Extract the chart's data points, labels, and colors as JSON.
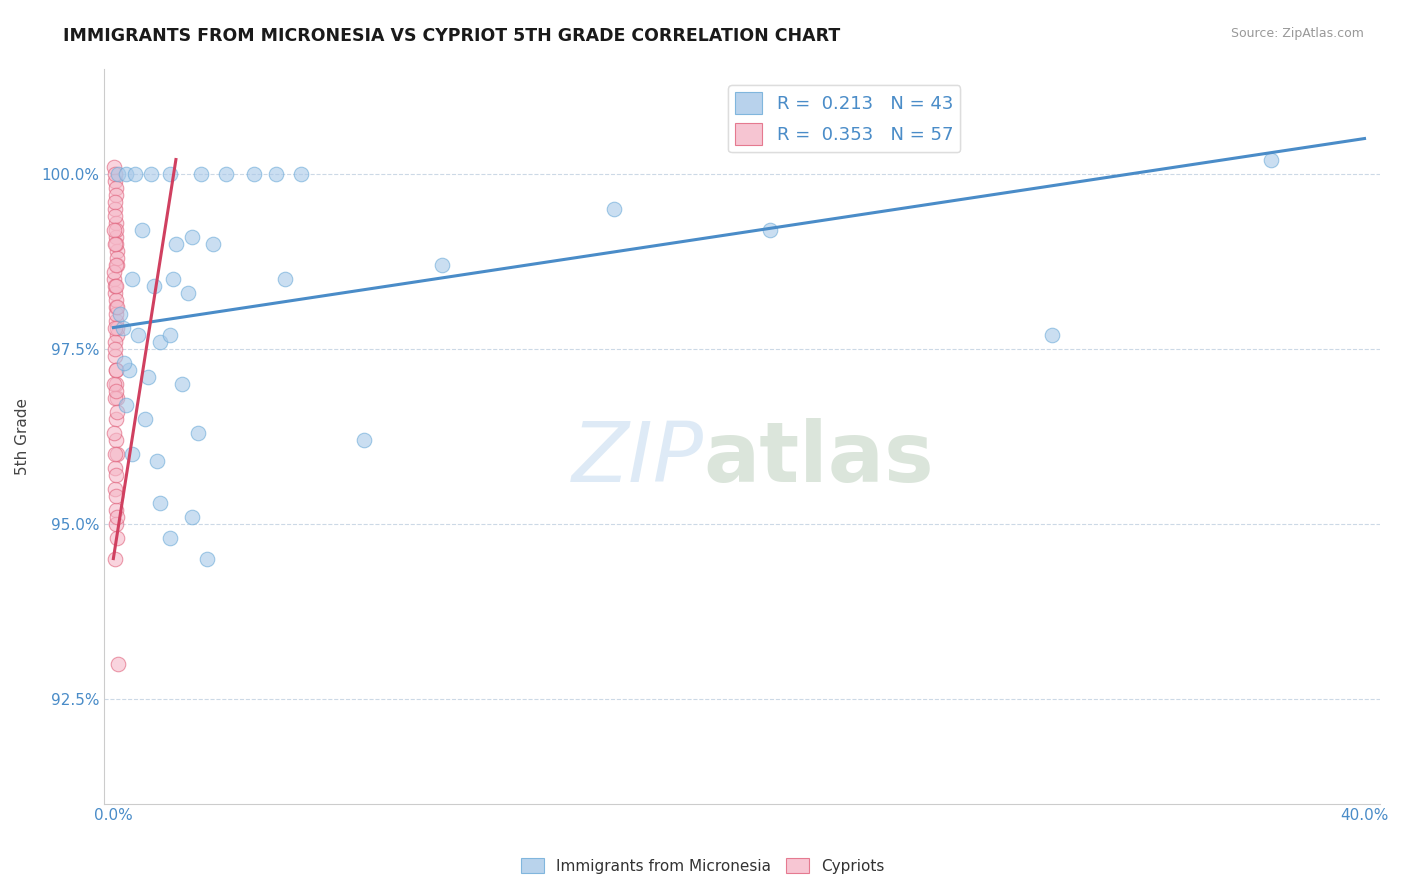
{
  "title": "IMMIGRANTS FROM MICRONESIA VS CYPRIOT 5TH GRADE CORRELATION CHART",
  "source_text": "Source: ZipAtlas.com",
  "ylabel": "5th Grade",
  "xlim": [
    0.0,
    40.0
  ],
  "ylim": [
    91.0,
    101.5
  ],
  "yticks": [
    92.5,
    95.0,
    97.5,
    100.0
  ],
  "xticks": [
    0.0,
    10.0,
    20.0,
    30.0,
    40.0
  ],
  "xtick_labels": [
    "0.0%",
    "",
    "",
    "",
    "40.0%"
  ],
  "ytick_labels": [
    "92.5%",
    "95.0%",
    "97.5%",
    "100.0%"
  ],
  "legend_r_blue": "0.213",
  "legend_n_blue": "43",
  "legend_r_pink": "0.353",
  "legend_n_pink": "57",
  "blue_color": "#a8c8e8",
  "blue_edge": "#6aaad8",
  "pink_color": "#f5b8c8",
  "pink_edge": "#e0607a",
  "trendline_blue": "#4a8cc8",
  "trendline_pink": "#d04060",
  "blue_scatter": [
    [
      0.15,
      100.0
    ],
    [
      0.4,
      100.0
    ],
    [
      0.7,
      100.0
    ],
    [
      1.2,
      100.0
    ],
    [
      1.8,
      100.0
    ],
    [
      2.8,
      100.0
    ],
    [
      3.6,
      100.0
    ],
    [
      4.5,
      100.0
    ],
    [
      5.2,
      100.0
    ],
    [
      6.0,
      100.0
    ],
    [
      0.9,
      99.2
    ],
    [
      2.0,
      99.0
    ],
    [
      2.5,
      99.1
    ],
    [
      3.2,
      99.0
    ],
    [
      0.6,
      98.5
    ],
    [
      1.3,
      98.4
    ],
    [
      1.9,
      98.5
    ],
    [
      2.4,
      98.3
    ],
    [
      0.3,
      97.8
    ],
    [
      0.8,
      97.7
    ],
    [
      1.5,
      97.6
    ],
    [
      1.8,
      97.7
    ],
    [
      0.5,
      97.2
    ],
    [
      1.1,
      97.1
    ],
    [
      2.2,
      97.0
    ],
    [
      0.4,
      96.7
    ],
    [
      1.0,
      96.5
    ],
    [
      2.7,
      96.3
    ],
    [
      0.6,
      96.0
    ],
    [
      1.4,
      95.9
    ],
    [
      1.5,
      95.3
    ],
    [
      2.5,
      95.1
    ],
    [
      1.8,
      94.8
    ],
    [
      3.0,
      94.5
    ],
    [
      5.5,
      98.5
    ],
    [
      8.0,
      96.2
    ],
    [
      10.5,
      98.7
    ],
    [
      30.0,
      97.7
    ],
    [
      16.0,
      99.5
    ],
    [
      21.0,
      99.2
    ],
    [
      37.0,
      100.2
    ],
    [
      0.2,
      98.0
    ],
    [
      0.35,
      97.3
    ]
  ],
  "pink_scatter": [
    [
      0.03,
      100.1
    ],
    [
      0.05,
      99.9
    ],
    [
      0.06,
      100.0
    ],
    [
      0.08,
      99.8
    ],
    [
      0.1,
      99.7
    ],
    [
      0.04,
      99.5
    ],
    [
      0.07,
      99.3
    ],
    [
      0.09,
      99.1
    ],
    [
      0.11,
      98.9
    ],
    [
      0.13,
      98.7
    ],
    [
      0.03,
      98.5
    ],
    [
      0.05,
      98.3
    ],
    [
      0.07,
      98.1
    ],
    [
      0.09,
      97.9
    ],
    [
      0.11,
      97.7
    ],
    [
      0.04,
      99.6
    ],
    [
      0.06,
      99.4
    ],
    [
      0.08,
      99.2
    ],
    [
      0.1,
      99.0
    ],
    [
      0.12,
      98.8
    ],
    [
      0.03,
      98.6
    ],
    [
      0.05,
      98.4
    ],
    [
      0.07,
      98.2
    ],
    [
      0.09,
      98.0
    ],
    [
      0.11,
      97.8
    ],
    [
      0.04,
      97.6
    ],
    [
      0.06,
      97.4
    ],
    [
      0.08,
      97.2
    ],
    [
      0.1,
      97.0
    ],
    [
      0.12,
      96.8
    ],
    [
      0.03,
      97.0
    ],
    [
      0.05,
      96.8
    ],
    [
      0.07,
      96.5
    ],
    [
      0.09,
      96.2
    ],
    [
      0.11,
      96.0
    ],
    [
      0.04,
      95.8
    ],
    [
      0.06,
      95.5
    ],
    [
      0.08,
      95.2
    ],
    [
      0.1,
      95.0
    ],
    [
      0.12,
      94.8
    ],
    [
      0.03,
      99.2
    ],
    [
      0.05,
      99.0
    ],
    [
      0.07,
      98.7
    ],
    [
      0.09,
      98.4
    ],
    [
      0.11,
      98.1
    ],
    [
      0.04,
      97.8
    ],
    [
      0.06,
      97.5
    ],
    [
      0.08,
      97.2
    ],
    [
      0.1,
      96.9
    ],
    [
      0.12,
      96.6
    ],
    [
      0.03,
      96.3
    ],
    [
      0.05,
      96.0
    ],
    [
      0.07,
      95.7
    ],
    [
      0.09,
      95.4
    ],
    [
      0.11,
      95.1
    ],
    [
      0.04,
      94.5
    ],
    [
      0.15,
      93.0
    ]
  ],
  "blue_trend_x": [
    0.0,
    40.0
  ],
  "blue_trend_y": [
    97.8,
    100.5
  ],
  "pink_trend_x": [
    0.0,
    2.0
  ],
  "pink_trend_y": [
    94.5,
    100.2
  ]
}
